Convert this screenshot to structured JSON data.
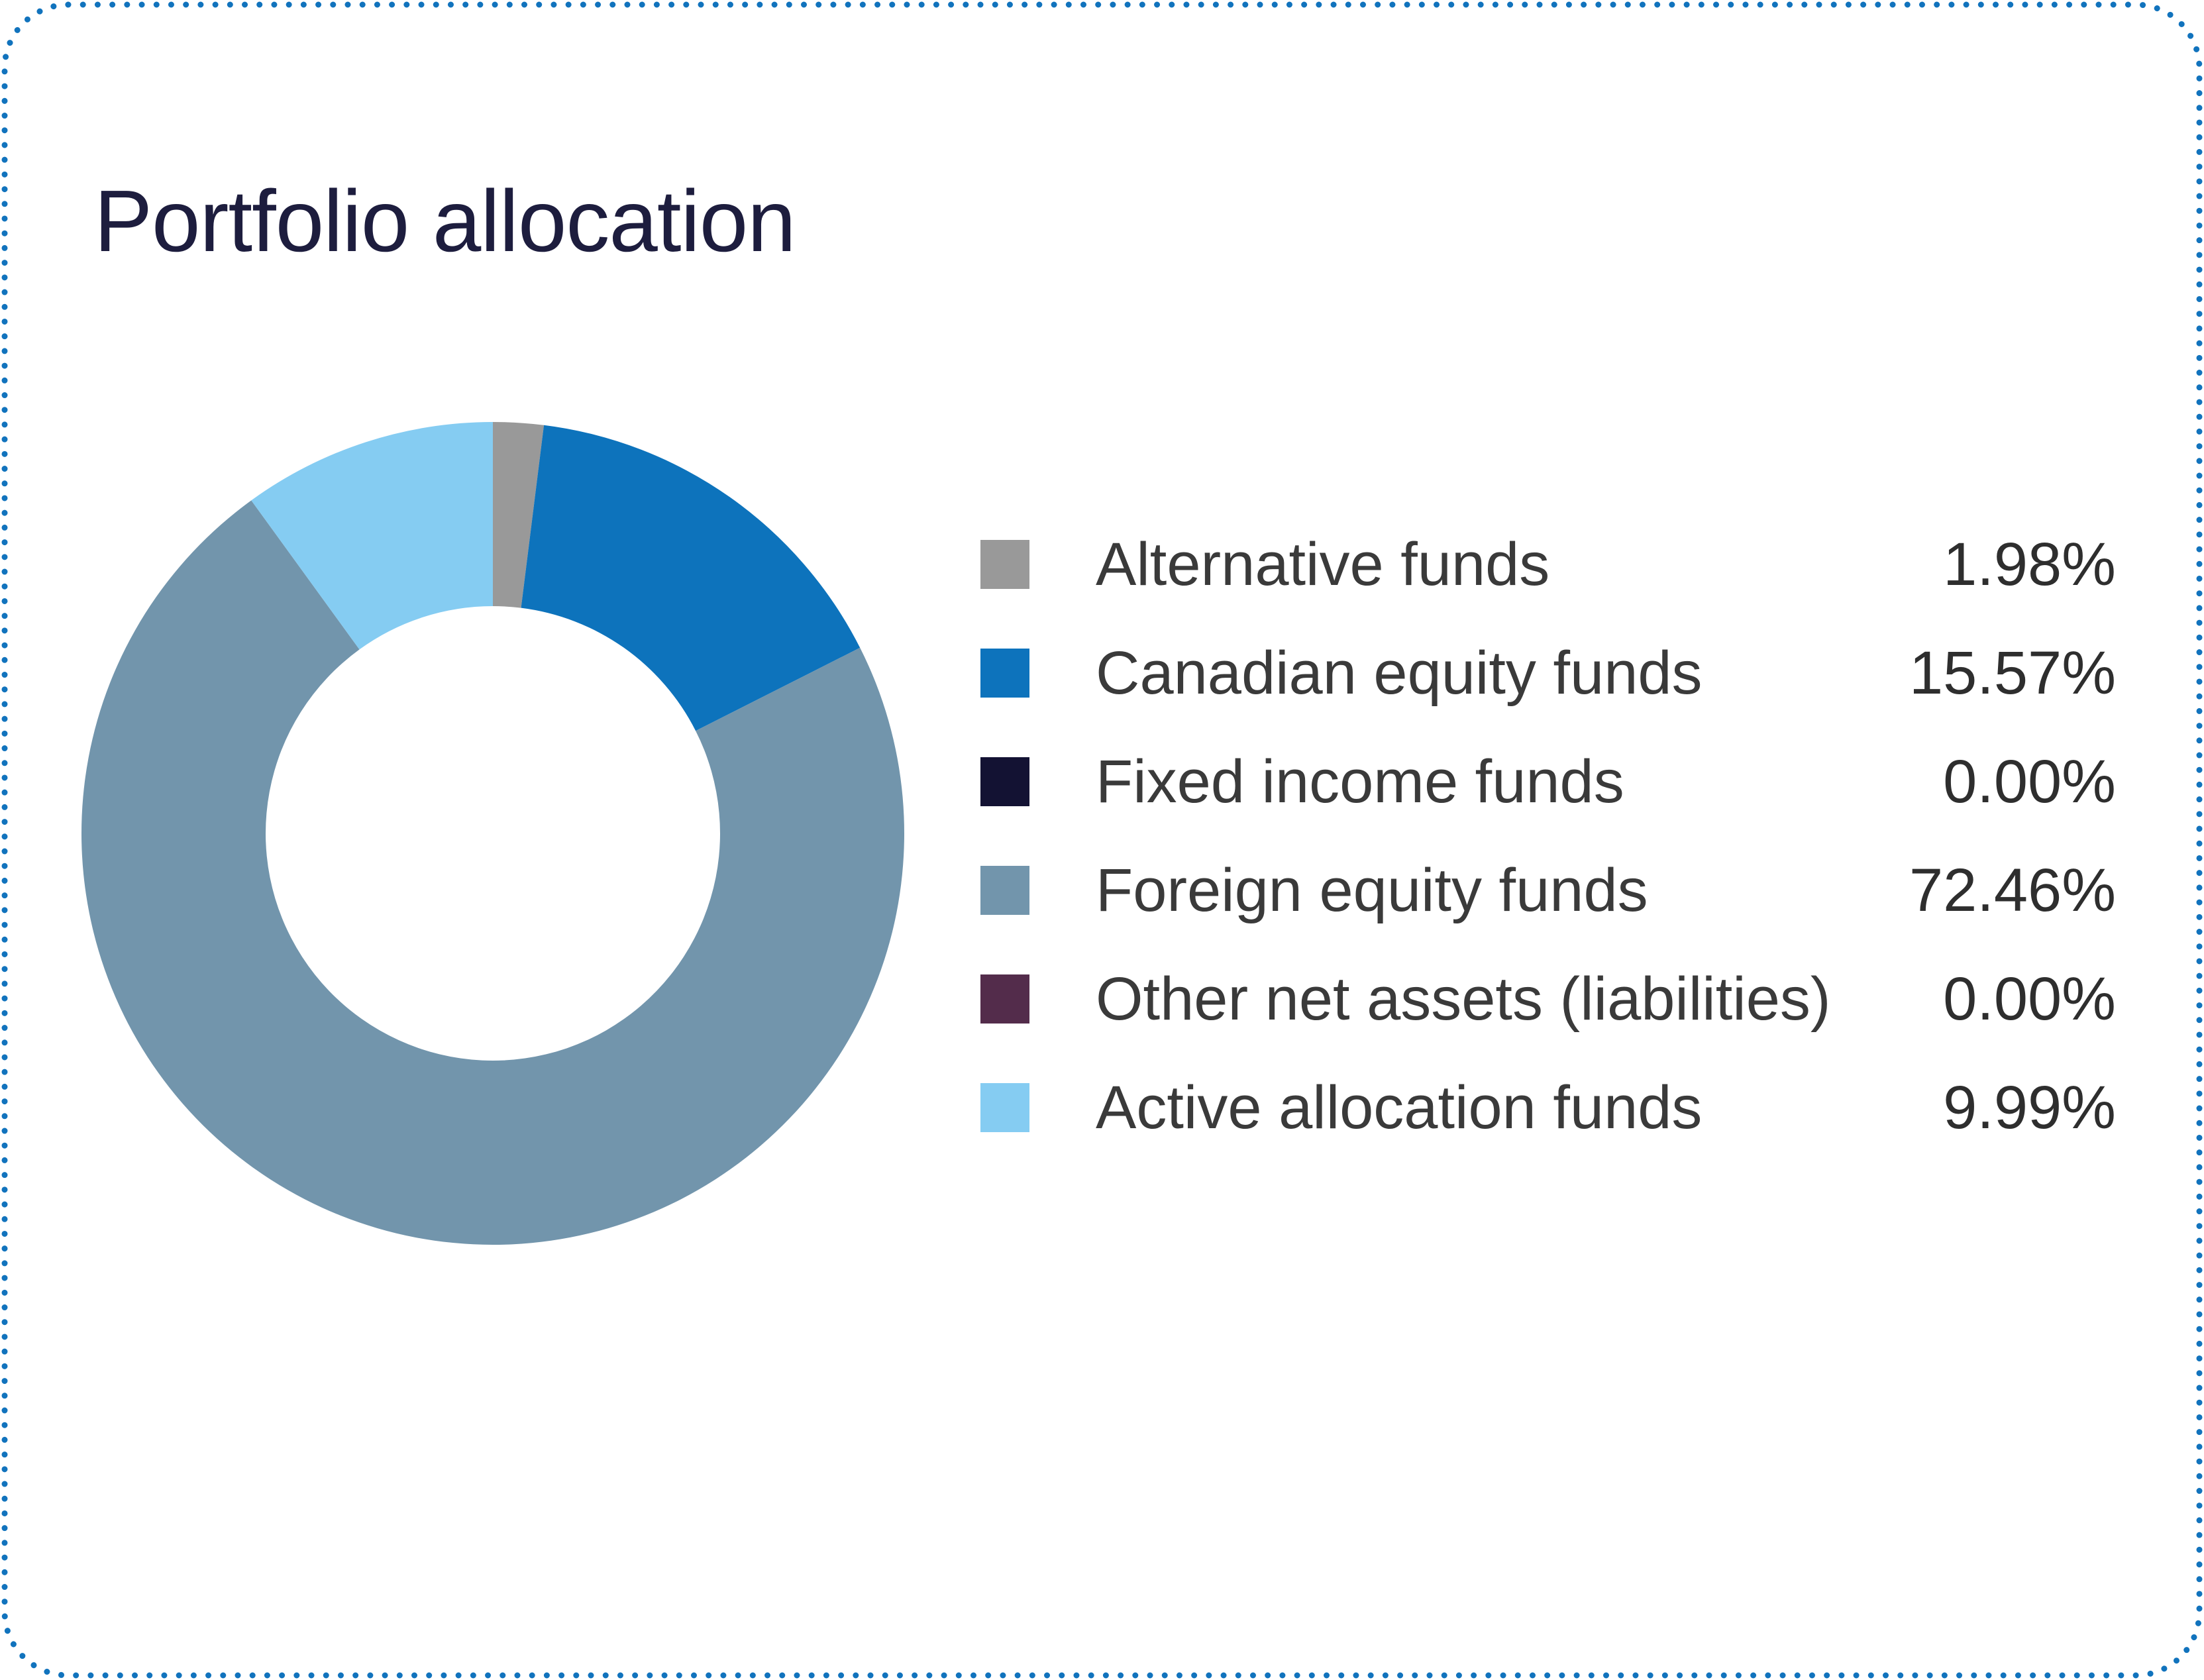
{
  "card": {
    "title": "Portfolio allocation"
  },
  "colors": {
    "border_dots": "#1173bd",
    "title_text": "#1d1d3e",
    "legend_label_text": "#3a3a3a",
    "legend_value_text": "#2e2e2e",
    "background": "#ffffff"
  },
  "chart_data": {
    "type": "pie",
    "subtype": "donut",
    "title": "Portfolio allocation",
    "legend_position": "right",
    "start_angle_deg": 0,
    "direction": "clockwise",
    "inner_radius_ratio": 0.552,
    "grid": false,
    "series": [
      {
        "label": "Alternative funds",
        "value_pct": 1.98,
        "display": "1.98%",
        "color": "#999999"
      },
      {
        "label": "Canadian equity funds",
        "value_pct": 15.57,
        "display": "15.57%",
        "color": "#0d73bc"
      },
      {
        "label": "Fixed income funds",
        "value_pct": 0.0,
        "display": "0.00%",
        "color": "#131233"
      },
      {
        "label": "Foreign equity funds",
        "value_pct": 72.46,
        "display": "72.46%",
        "color": "#7295ac"
      },
      {
        "label": "Other net assets (liabilities)",
        "value_pct": 0.0,
        "display": "0.00%",
        "color": "#532c4b"
      },
      {
        "label": "Active allocation funds",
        "value_pct": 9.99,
        "display": "9.99%",
        "color": "#85ccf2"
      }
    ]
  }
}
